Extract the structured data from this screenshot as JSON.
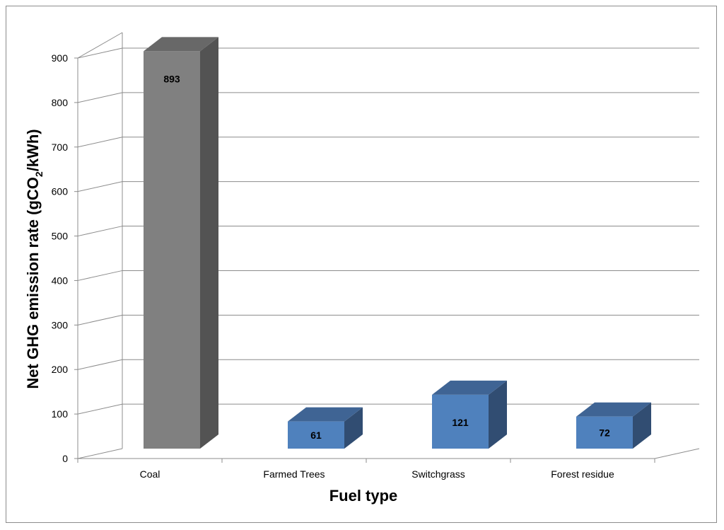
{
  "chart_data": {
    "type": "bar",
    "categories": [
      "Coal",
      "Farmed Trees",
      "Switchgrass",
      "Forest residue"
    ],
    "values": [
      893,
      61,
      121,
      72
    ],
    "data_labels": [
      "893",
      "61",
      "121",
      "72"
    ],
    "title": "",
    "xlabel": "Fuel type",
    "ylabel_prefix": "Net GHG emission rate (gCO",
    "ylabel_sub": "2",
    "ylabel_suffix": "/kWh)",
    "ylim": [
      0,
      900
    ],
    "y_ticks": [
      "0",
      "100",
      "200",
      "300",
      "400",
      "500",
      "600",
      "700",
      "800",
      "900"
    ],
    "grid": true,
    "legend": "none",
    "style": "3d-column",
    "colors": {
      "Coal": {
        "front": "#808080",
        "top": "#686868",
        "side": "#535353"
      },
      "Farmed Trees": {
        "front": "#4f81bd",
        "top": "#3f6494",
        "side": "#314d72"
      },
      "Switchgrass": {
        "front": "#4f81bd",
        "top": "#3f6494",
        "side": "#314d72"
      },
      "Forest residue": {
        "front": "#4f81bd",
        "top": "#3f6494",
        "side": "#314d72"
      }
    }
  }
}
